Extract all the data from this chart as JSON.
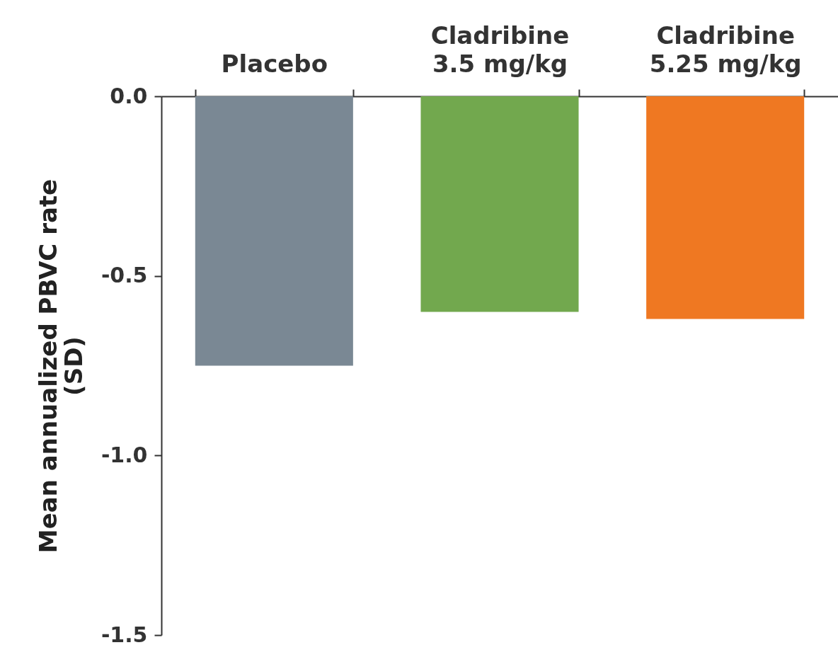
{
  "chart_data": {
    "type": "bar",
    "categories": [
      "Placebo",
      "Cladribine\n3.5 mg/kg",
      "Cladribine\n5.25 mg/kg"
    ],
    "values": [
      -0.75,
      -0.6,
      -0.62
    ],
    "colors": [
      "#7a8894",
      "#72a84e",
      "#ef7822"
    ],
    "ylabel": "Mean annualized PBVC rate\n(SD)",
    "ylim": [
      -1.5,
      0
    ],
    "yticks": [
      {
        "value": 0,
        "label": "0.0"
      },
      {
        "value": -0.5,
        "label": "-0.5"
      },
      {
        "value": -1,
        "label": "-1.0"
      },
      {
        "value": -1.5,
        "label": "-1.5"
      }
    ],
    "grid": false
  }
}
